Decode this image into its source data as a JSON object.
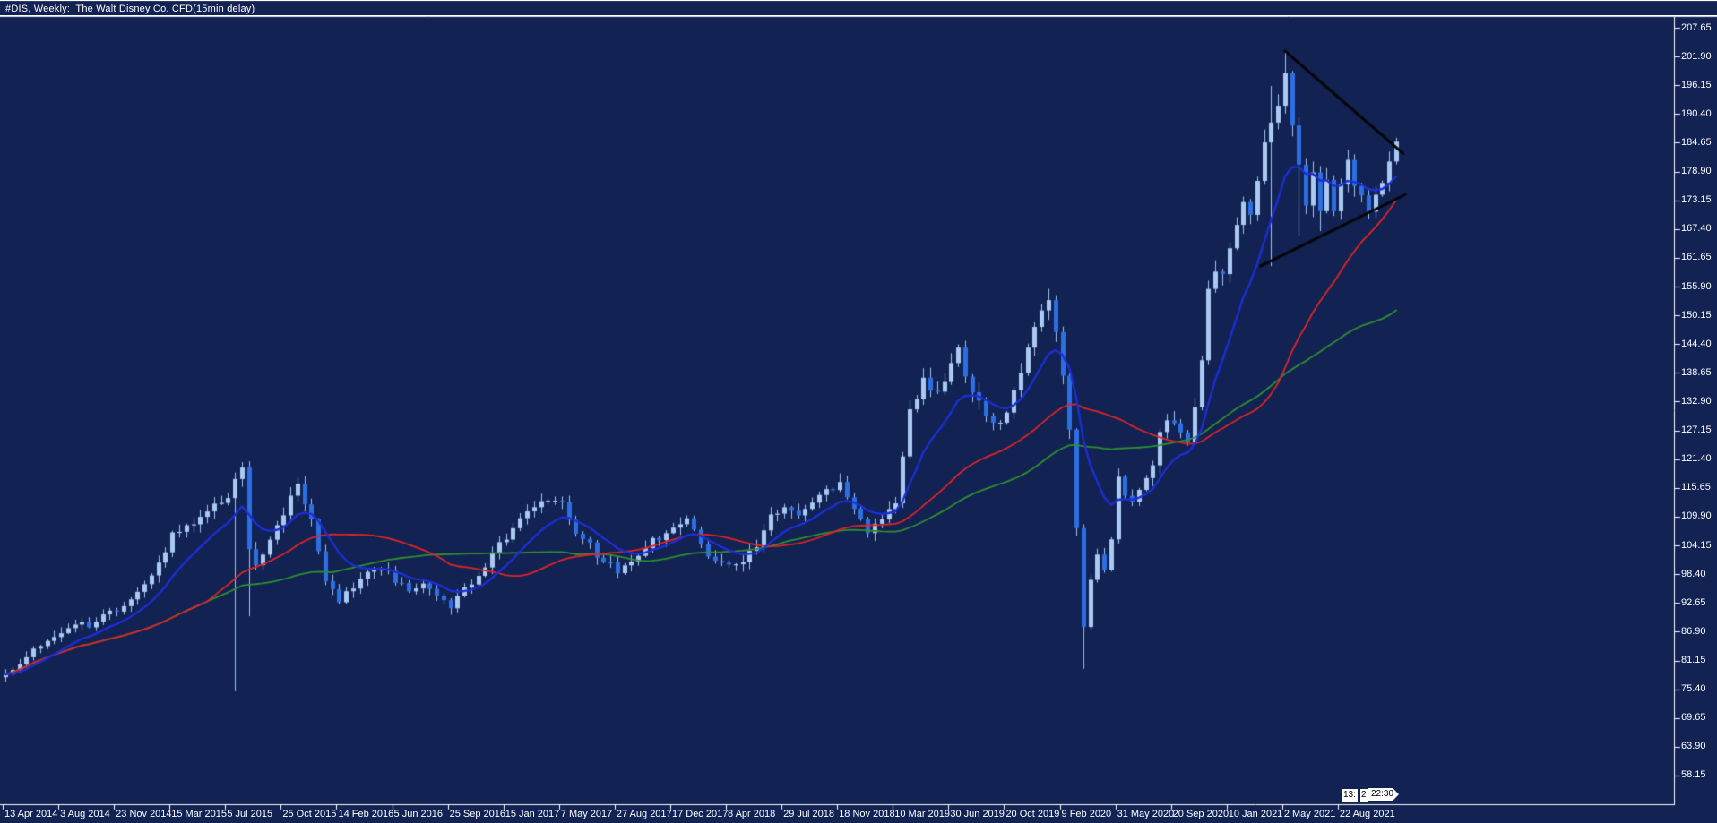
{
  "window": {
    "title": "#DIS, Weekly:  The Walt Disney Co. CFD(15min delay)"
  },
  "colors": {
    "background": "#112253",
    "frame": "#ffffff",
    "text": "#ffffff",
    "bull": "#a9c9f1",
    "bear": "#2b6fe3",
    "wick": "#9fc2ee",
    "ma_fast": "#1e2ed4",
    "ma_mid": "#e02424",
    "ma_slow": "#2f8f2f",
    "trendline": "#060606",
    "tag_bg": "#ffffff",
    "tag_text": "#000000"
  },
  "time_tags": {
    "hour_label": "13:",
    "partial": "2",
    "minute_label": "22:30"
  },
  "chart_data": {
    "type": "candlestick",
    "symbol": "#DIS",
    "timeframe": "Weekly",
    "description": "The Walt Disney Co. CFD(15min delay)",
    "title": "#DIS, Weekly:  The Walt Disney Co. CFD(15min delay)",
    "grid": false,
    "legend": false,
    "y_axis_side": "right",
    "y_range": [
      58.15,
      207.65
    ],
    "price_axis_ticks": [
      "207.65",
      "201.90",
      "196.15",
      "190.40",
      "184.65",
      "178.90",
      "173.15",
      "167.40",
      "161.65",
      "155.90",
      "150.15",
      "144.40",
      "138.65",
      "132.90",
      "127.15",
      "121.40",
      "115.65",
      "109.90",
      "104.15",
      "98.40",
      "92.65",
      "86.90",
      "81.15",
      "75.40",
      "69.65",
      "63.90",
      "58.15"
    ],
    "time_axis_ticks": [
      "13 Apr 2014",
      "3 Aug 2014",
      "23 Nov 2014",
      "15 Mar 2015",
      "5 Jul 2015",
      "25 Oct 2015",
      "14 Feb 2016",
      "5 Jun 2016",
      "25 Sep 2016",
      "15 Jan 2017",
      "7 May 2017",
      "27 Aug 2017",
      "17 Dec 2017",
      "8 Apr 2018",
      "29 Jul 2018",
      "18 Nov 2018",
      "10 Mar 2019",
      "30 Jun 2019",
      "20 Oct 2019",
      "9 Feb 2020",
      "31 May 2020",
      "20 Sep 2020",
      "10 Jan 2021",
      "2 May 2021",
      "22 Aug 2021"
    ],
    "bars": {
      "count": 201,
      "bars_per_time_tick": 8,
      "anchors": [
        [
          0,
          79
        ],
        [
          2,
          80
        ],
        [
          4,
          83
        ],
        [
          6,
          85
        ],
        [
          8,
          87
        ],
        [
          10,
          89
        ],
        [
          12,
          88
        ],
        [
          14,
          90
        ],
        [
          16,
          91
        ],
        [
          18,
          93
        ],
        [
          20,
          96
        ],
        [
          22,
          101
        ],
        [
          24,
          106
        ],
        [
          26,
          108
        ],
        [
          28,
          110
        ],
        [
          30,
          112
        ],
        [
          32,
          114
        ],
        [
          33,
          117
        ],
        [
          34,
          120
        ],
        [
          35,
          104
        ],
        [
          36,
          101
        ],
        [
          38,
          105
        ],
        [
          40,
          111
        ],
        [
          42,
          116
        ],
        [
          44,
          109
        ],
        [
          46,
          97
        ],
        [
          48,
          93
        ],
        [
          50,
          96
        ],
        [
          52,
          99
        ],
        [
          54,
          100
        ],
        [
          56,
          97
        ],
        [
          58,
          95
        ],
        [
          60,
          96
        ],
        [
          62,
          94
        ],
        [
          64,
          92
        ],
        [
          66,
          95
        ],
        [
          68,
          98
        ],
        [
          70,
          103
        ],
        [
          72,
          106
        ],
        [
          74,
          109
        ],
        [
          76,
          112
        ],
        [
          78,
          113
        ],
        [
          80,
          112
        ],
        [
          82,
          107
        ],
        [
          84,
          104
        ],
        [
          86,
          101
        ],
        [
          88,
          99
        ],
        [
          90,
          101
        ],
        [
          92,
          104
        ],
        [
          94,
          106
        ],
        [
          96,
          108
        ],
        [
          98,
          110
        ],
        [
          100,
          104
        ],
        [
          102,
          101
        ],
        [
          104,
          100
        ],
        [
          106,
          101
        ],
        [
          108,
          104
        ],
        [
          110,
          110
        ],
        [
          112,
          112
        ],
        [
          114,
          110
        ],
        [
          116,
          113
        ],
        [
          118,
          115
        ],
        [
          120,
          117
        ],
        [
          122,
          112
        ],
        [
          124,
          107
        ],
        [
          126,
          110
        ],
        [
          128,
          113
        ],
        [
          130,
          131
        ],
        [
          132,
          137
        ],
        [
          134,
          134
        ],
        [
          136,
          140
        ],
        [
          137,
          143
        ],
        [
          138,
          139
        ],
        [
          139,
          135
        ],
        [
          140,
          133
        ],
        [
          141,
          131
        ],
        [
          142,
          129
        ],
        [
          144,
          130
        ],
        [
          146,
          139
        ],
        [
          148,
          148
        ],
        [
          150,
          152
        ],
        [
          151,
          147
        ],
        [
          152,
          139
        ],
        [
          153,
          128
        ],
        [
          154,
          108
        ],
        [
          155,
          88
        ],
        [
          156,
          97
        ],
        [
          157,
          103
        ],
        [
          158,
          100
        ],
        [
          159,
          106
        ],
        [
          160,
          117
        ],
        [
          161,
          115
        ],
        [
          162,
          113
        ],
        [
          163,
          115
        ],
        [
          164,
          117
        ],
        [
          165,
          121
        ],
        [
          166,
          127
        ],
        [
          167,
          129
        ],
        [
          168,
          128
        ],
        [
          169,
          126
        ],
        [
          170,
          124
        ],
        [
          171,
          131
        ],
        [
          172,
          142
        ],
        [
          173,
          155
        ],
        [
          174,
          160
        ],
        [
          175,
          158
        ],
        [
          176,
          163
        ],
        [
          177,
          168
        ],
        [
          178,
          172
        ],
        [
          179,
          170
        ],
        [
          180,
          178
        ],
        [
          181,
          184
        ],
        [
          182,
          189
        ],
        [
          183,
          193
        ],
        [
          184,
          197
        ],
        [
          185,
          188
        ],
        [
          186,
          180
        ],
        [
          187,
          172
        ],
        [
          188,
          178
        ],
        [
          189,
          171
        ],
        [
          190,
          176
        ],
        [
          191,
          172
        ],
        [
          192,
          176
        ],
        [
          193,
          180
        ],
        [
          194,
          177
        ],
        [
          195,
          173
        ],
        [
          196,
          170
        ],
        [
          197,
          175
        ],
        [
          198,
          178
        ],
        [
          199,
          182
        ],
        [
          200,
          185
        ]
      ],
      "wick_overrides": {
        "33": {
          "low": 75
        },
        "35": {
          "low": 90
        },
        "155": {
          "low": 79.5
        },
        "182": {
          "low": 160,
          "high": 196
        },
        "184": {
          "high": 203
        },
        "185": {
          "high": 199
        },
        "186": {
          "low": 166
        },
        "189": {
          "low": 167
        }
      }
    },
    "moving_averages": [
      {
        "name": "fast-ma",
        "method": "ema",
        "period": 10,
        "color": "#1e2ed4",
        "width": 2.4
      },
      {
        "name": "medium-ma",
        "method": "sma",
        "period": 30,
        "color": "#e02424",
        "width": 1.8
      },
      {
        "name": "slow-ma",
        "method": "sma",
        "period": 48,
        "color": "#2f8f2f",
        "width": 1.8
      }
    ],
    "trendlines": [
      {
        "name": "upper-triangle-line",
        "from_bar": 184,
        "from_price": 203,
        "to_bar": 201,
        "to_price": 182.5,
        "color": "#060606",
        "width": 3
      },
      {
        "name": "lower-triangle-line",
        "from_bar": 180.5,
        "from_price": 160,
        "to_bar": 201.3,
        "to_price": 174.3,
        "color": "#060606",
        "width": 3
      }
    ]
  }
}
